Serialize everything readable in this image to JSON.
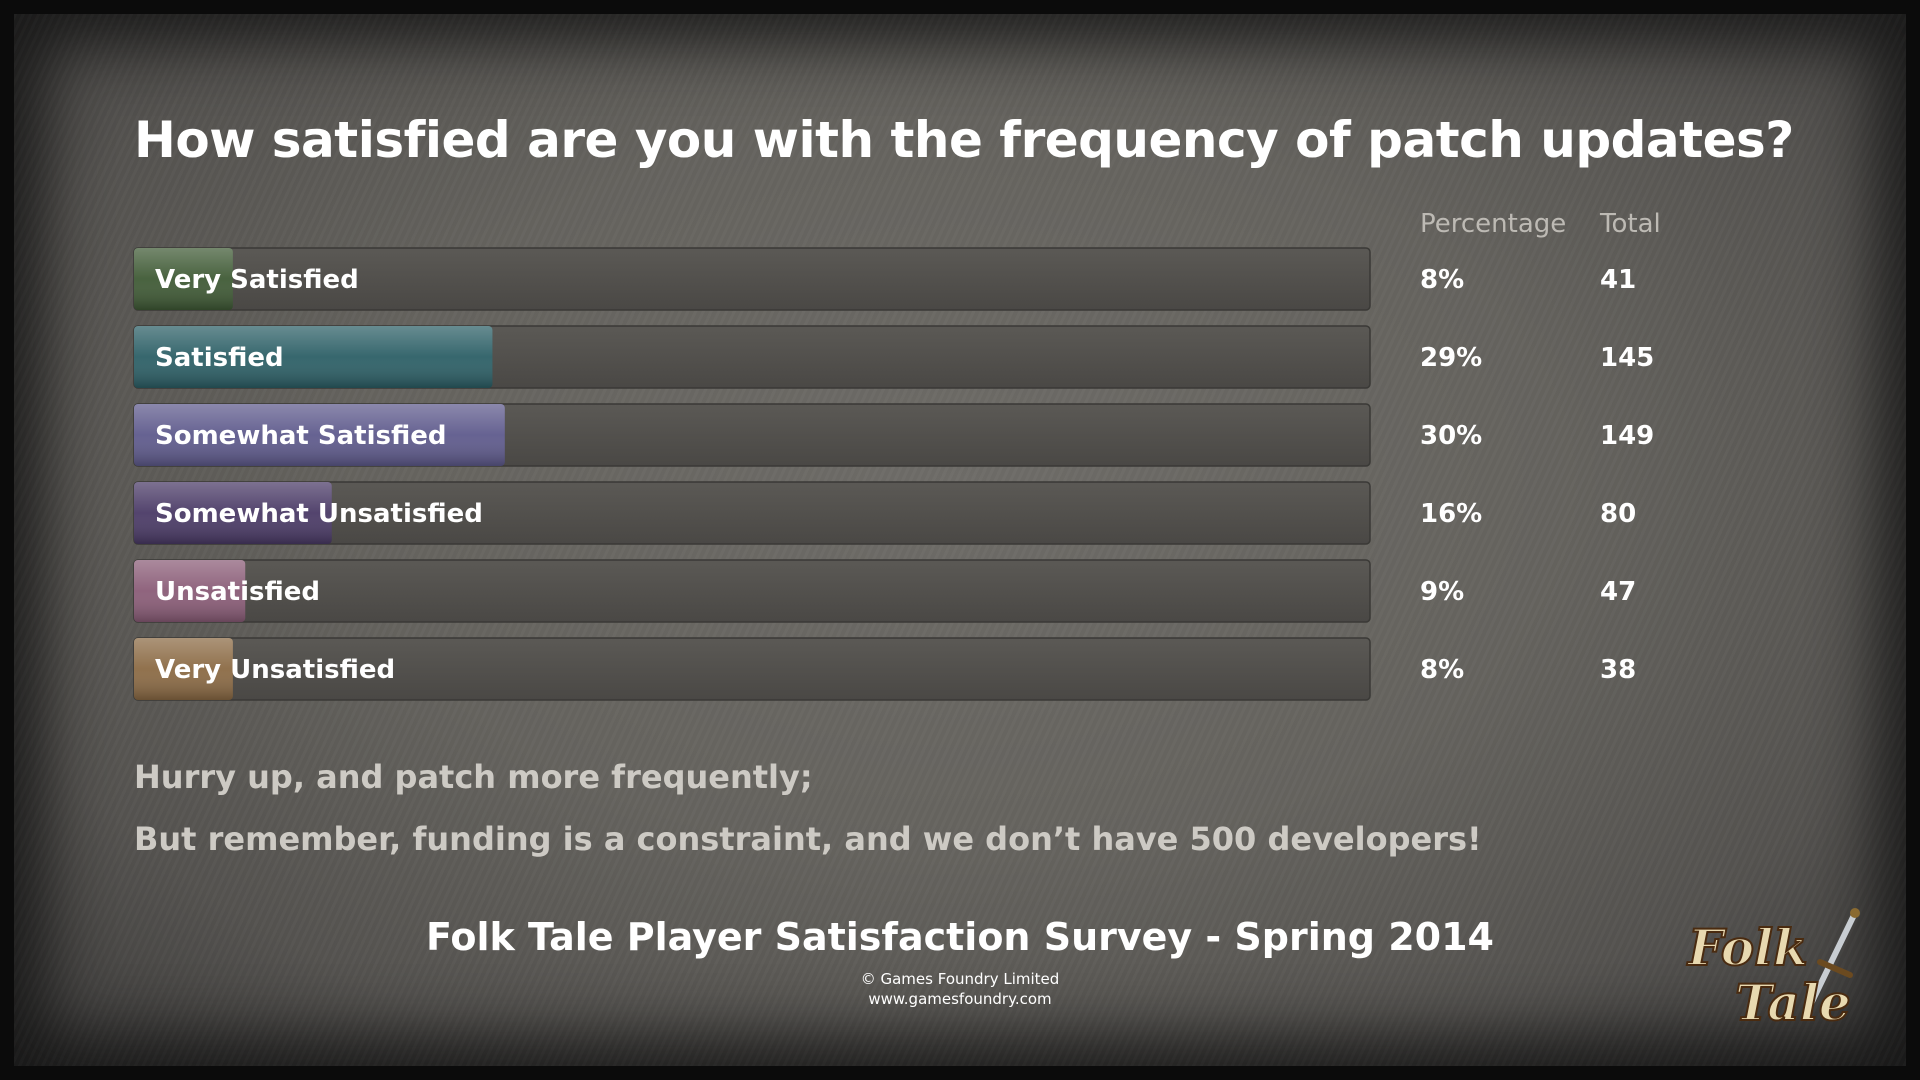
{
  "chart_data": {
    "type": "bar",
    "orientation": "horizontal",
    "title": "How satisfied are you with the frequency of patch updates?",
    "column_headers": {
      "percentage": "Percentage",
      "total": "Total"
    },
    "xlim": [
      0,
      100
    ],
    "categories": [
      "Very Satisfied",
      "Satisfied",
      "Somewhat Satisfied",
      "Somewhat Unsatisfied",
      "Unsatisfied",
      "Very Unsatisfied"
    ],
    "values": [
      8,
      29,
      30,
      16,
      9,
      8
    ],
    "percent_labels": [
      "8%",
      "29%",
      "30%",
      "16%",
      "9%",
      "8%"
    ],
    "totals": [
      "41",
      "145",
      "149",
      "80",
      "47",
      "38"
    ],
    "colors": [
      "#3f5a35",
      "#2c5f66",
      "#5e5a8c",
      "#4a3a66",
      "#8a5c77",
      "#8b6a44"
    ]
  },
  "notes": [
    "Hurry up, and patch more frequently;",
    "But remember, funding is a constraint, and we don’t have 500 developers!"
  ],
  "footer": {
    "title": "Folk Tale Player Satisfaction Survey - Spring 2014",
    "copyright": "© Games Foundry Limited",
    "url": "www.gamesfoundry.com"
  },
  "logo": {
    "line1": "Folk",
    "line2": "Tale",
    "icon": "sword-icon"
  }
}
